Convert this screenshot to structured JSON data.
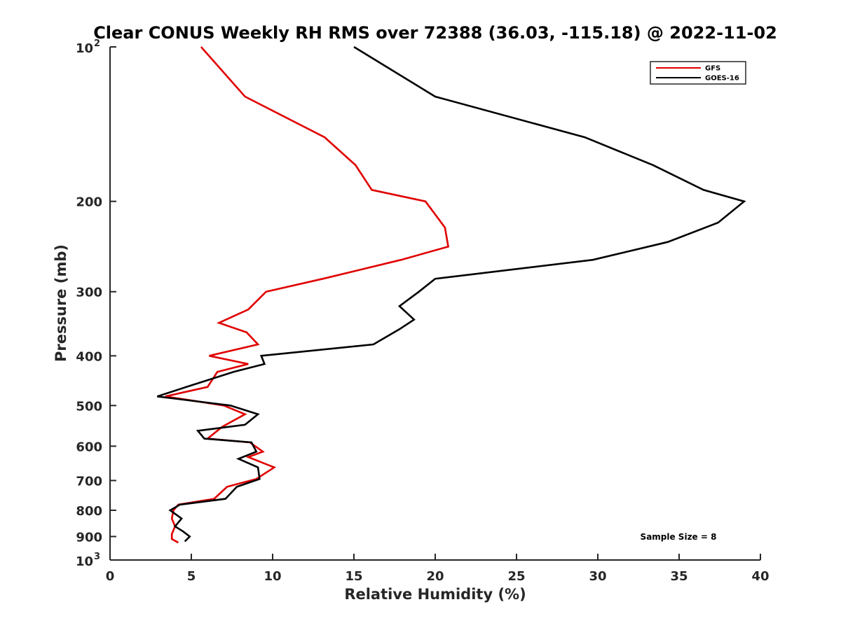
{
  "chart_data": {
    "type": "line",
    "title": "Clear CONUS Weekly RH RMS over 72388 (36.03, -115.18) @ 2022-11-02",
    "xlabel": "Relative Humidity (%)",
    "ylabel": "Pressure (mb)",
    "xlim": [
      0,
      40
    ],
    "ylim": [
      100,
      1000
    ],
    "y_scale": "log",
    "y_reversed": true,
    "grid": false,
    "legend_position": "top-right",
    "x_ticks": [
      "0",
      "5",
      "10",
      "15",
      "20",
      "25",
      "30",
      "35",
      "40"
    ],
    "y_ticks": [
      {
        "value": 100,
        "base": "10",
        "exp": "2"
      },
      {
        "value": 200,
        "label": "200"
      },
      {
        "value": 300,
        "label": "300"
      },
      {
        "value": 400,
        "label": "400"
      },
      {
        "value": 500,
        "label": "500"
      },
      {
        "value": 600,
        "label": "600"
      },
      {
        "value": 700,
        "label": "700"
      },
      {
        "value": 800,
        "label": "800"
      },
      {
        "value": 900,
        "label": "900"
      },
      {
        "value": 1000,
        "base": "10",
        "exp": "3"
      }
    ],
    "series": [
      {
        "name": "GFS",
        "color": "#e00000",
        "points": [
          [
            5.6,
            100
          ],
          [
            8.3,
            125
          ],
          [
            13.2,
            150
          ],
          [
            15.1,
            170
          ],
          [
            16.1,
            190
          ],
          [
            19.4,
            200
          ],
          [
            20.6,
            225
          ],
          [
            20.8,
            245
          ],
          [
            17.9,
            260
          ],
          [
            13.1,
            283
          ],
          [
            9.6,
            300
          ],
          [
            8.5,
            325
          ],
          [
            6.7,
            345
          ],
          [
            8.4,
            360
          ],
          [
            9.1,
            380
          ],
          [
            6.1,
            400
          ],
          [
            8.5,
            415
          ],
          [
            6.6,
            430
          ],
          [
            6.0,
            460
          ],
          [
            3.4,
            480
          ],
          [
            7.0,
            500
          ],
          [
            8.3,
            520
          ],
          [
            6.9,
            550
          ],
          [
            6.0,
            580
          ],
          [
            8.6,
            590
          ],
          [
            9.4,
            615
          ],
          [
            8.5,
            630
          ],
          [
            10.1,
            660
          ],
          [
            9.0,
            695
          ],
          [
            7.2,
            720
          ],
          [
            6.4,
            760
          ],
          [
            4.2,
            780
          ],
          [
            3.9,
            800
          ],
          [
            3.8,
            830
          ],
          [
            4.0,
            860
          ],
          [
            3.8,
            890
          ],
          [
            3.8,
            910
          ],
          [
            4.2,
            925
          ]
        ]
      },
      {
        "name": "GOES-16",
        "color": "#000000",
        "points": [
          [
            15.0,
            100
          ],
          [
            20.0,
            125
          ],
          [
            29.2,
            150
          ],
          [
            33.4,
            170
          ],
          [
            36.5,
            190
          ],
          [
            39.0,
            200
          ],
          [
            37.4,
            220
          ],
          [
            34.3,
            240
          ],
          [
            29.7,
            260
          ],
          [
            20.0,
            283
          ],
          [
            19.0,
            300
          ],
          [
            17.8,
            320
          ],
          [
            18.7,
            340
          ],
          [
            17.8,
            355
          ],
          [
            16.2,
            380
          ],
          [
            9.3,
            400
          ],
          [
            9.5,
            415
          ],
          [
            7.6,
            430
          ],
          [
            4.7,
            460
          ],
          [
            2.9,
            480
          ],
          [
            7.4,
            500
          ],
          [
            9.1,
            520
          ],
          [
            8.3,
            545
          ],
          [
            5.4,
            560
          ],
          [
            5.8,
            580
          ],
          [
            8.7,
            590
          ],
          [
            9.0,
            615
          ],
          [
            7.9,
            635
          ],
          [
            9.1,
            660
          ],
          [
            9.2,
            695
          ],
          [
            7.8,
            720
          ],
          [
            7.1,
            760
          ],
          [
            4.3,
            780
          ],
          [
            3.7,
            800
          ],
          [
            4.4,
            830
          ],
          [
            4.0,
            860
          ],
          [
            4.5,
            880
          ],
          [
            4.9,
            900
          ],
          [
            4.6,
            920
          ]
        ]
      }
    ],
    "annotation": "Sample Size = 8"
  }
}
